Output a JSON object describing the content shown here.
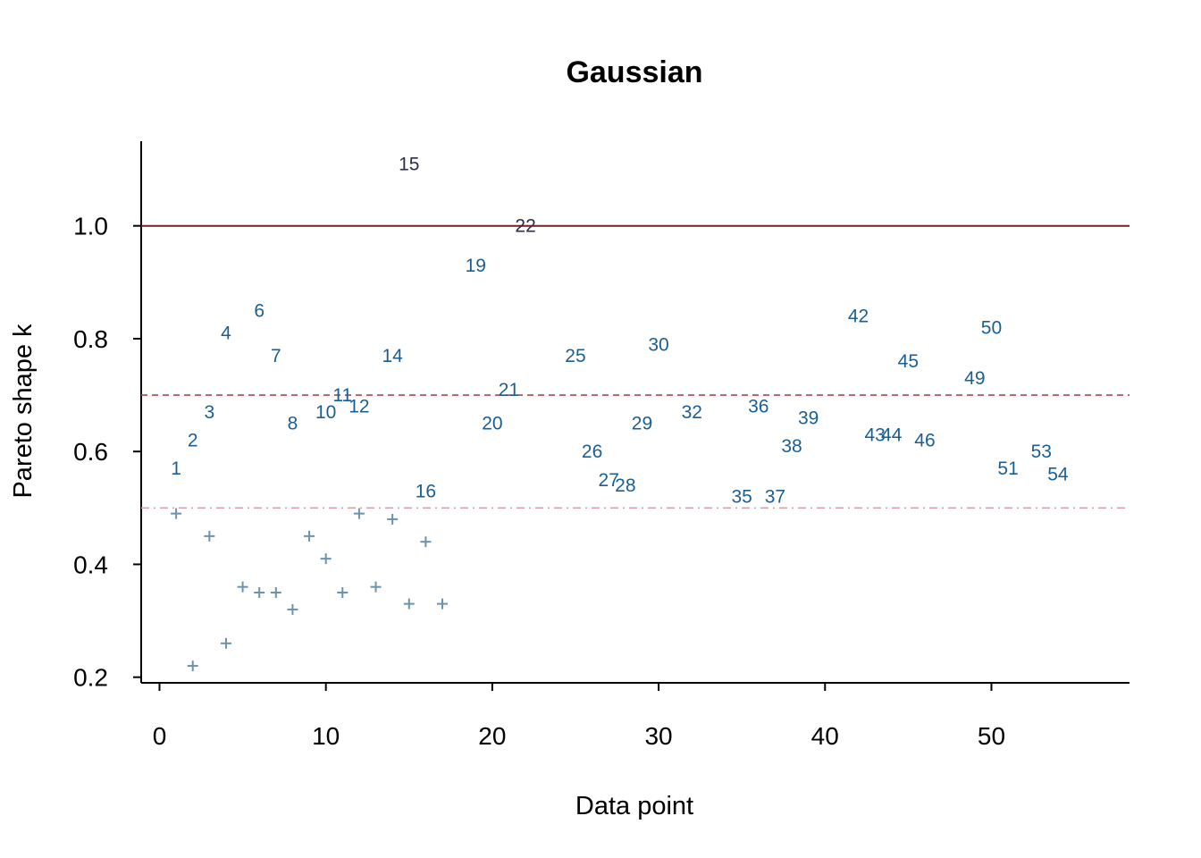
{
  "chart_data": {
    "type": "scatter",
    "title": "Gaussian",
    "xlabel": "Data point",
    "ylabel": "Pareto shape k",
    "xlim": [
      -1.1,
      58.3
    ],
    "ylim": [
      0.19,
      1.15
    ],
    "xticks": [
      0,
      10,
      20,
      30,
      40,
      50
    ],
    "yticks": [
      0.2,
      0.4,
      0.6,
      0.8,
      1.0
    ],
    "ytick_labels": [
      "0.2",
      "0.4",
      "0.6",
      "0.8",
      "1.0"
    ],
    "grid": false,
    "reference_lines": [
      {
        "y": 1.0,
        "style": "solid",
        "color": "#7a1f1f"
      },
      {
        "y": 0.7,
        "style": "dashed",
        "color": "#a34a58"
      },
      {
        "y": 0.5,
        "style": "dashdot",
        "color": "#d8a0aa"
      }
    ],
    "colors": {
      "plus": "#6b93ad",
      "label_high": "#1a5f94",
      "label_extreme": "#2e2e4a"
    },
    "plus_points": [
      {
        "x": 1,
        "y": 0.49
      },
      {
        "x": 2,
        "y": 0.22
      },
      {
        "x": 3,
        "y": 0.45
      },
      {
        "x": 4,
        "y": 0.26
      },
      {
        "x": 5,
        "y": 0.36
      },
      {
        "x": 6,
        "y": 0.35
      },
      {
        "x": 7,
        "y": 0.35
      },
      {
        "x": 8,
        "y": 0.32
      },
      {
        "x": 9,
        "y": 0.45
      },
      {
        "x": 10,
        "y": 0.41
      },
      {
        "x": 11,
        "y": 0.35
      },
      {
        "x": 12,
        "y": 0.49
      },
      {
        "x": 13,
        "y": 0.36
      },
      {
        "x": 14,
        "y": 0.48
      },
      {
        "x": 15,
        "y": 0.33
      },
      {
        "x": 16,
        "y": 0.44
      },
      {
        "x": 17,
        "y": 0.33
      }
    ],
    "labeled_points": [
      {
        "x": 1,
        "y": 0.57,
        "label": "1"
      },
      {
        "x": 2,
        "y": 0.62,
        "label": "2"
      },
      {
        "x": 3,
        "y": 0.67,
        "label": "3"
      },
      {
        "x": 4,
        "y": 0.81,
        "label": "4"
      },
      {
        "x": 6,
        "y": 0.85,
        "label": "6"
      },
      {
        "x": 7,
        "y": 0.77,
        "label": "7"
      },
      {
        "x": 8,
        "y": 0.65,
        "label": "8"
      },
      {
        "x": 10,
        "y": 0.67,
        "label": "10"
      },
      {
        "x": 11,
        "y": 0.7,
        "label": "11"
      },
      {
        "x": 12,
        "y": 0.68,
        "label": "12"
      },
      {
        "x": 14,
        "y": 0.77,
        "label": "14"
      },
      {
        "x": 15,
        "y": 1.11,
        "label": "15"
      },
      {
        "x": 16,
        "y": 0.53,
        "label": "16"
      },
      {
        "x": 19,
        "y": 0.93,
        "label": "19"
      },
      {
        "x": 20,
        "y": 0.65,
        "label": "20"
      },
      {
        "x": 21,
        "y": 0.71,
        "label": "21"
      },
      {
        "x": 22,
        "y": 1.0,
        "label": "22"
      },
      {
        "x": 25,
        "y": 0.77,
        "label": "25"
      },
      {
        "x": 26,
        "y": 0.6,
        "label": "26"
      },
      {
        "x": 27,
        "y": 0.55,
        "label": "27"
      },
      {
        "x": 28,
        "y": 0.54,
        "label": "28"
      },
      {
        "x": 29,
        "y": 0.65,
        "label": "29"
      },
      {
        "x": 30,
        "y": 0.79,
        "label": "30"
      },
      {
        "x": 32,
        "y": 0.67,
        "label": "32"
      },
      {
        "x": 35,
        "y": 0.52,
        "label": "35"
      },
      {
        "x": 36,
        "y": 0.68,
        "label": "36"
      },
      {
        "x": 37,
        "y": 0.52,
        "label": "37"
      },
      {
        "x": 38,
        "y": 0.61,
        "label": "38"
      },
      {
        "x": 39,
        "y": 0.66,
        "label": "39"
      },
      {
        "x": 42,
        "y": 0.84,
        "label": "42"
      },
      {
        "x": 43,
        "y": 0.63,
        "label": "43"
      },
      {
        "x": 44,
        "y": 0.63,
        "label": "44"
      },
      {
        "x": 45,
        "y": 0.76,
        "label": "45"
      },
      {
        "x": 46,
        "y": 0.62,
        "label": "46"
      },
      {
        "x": 49,
        "y": 0.73,
        "label": "49"
      },
      {
        "x": 50,
        "y": 0.82,
        "label": "50"
      },
      {
        "x": 51,
        "y": 0.57,
        "label": "51"
      },
      {
        "x": 53,
        "y": 0.6,
        "label": "53"
      },
      {
        "x": 54,
        "y": 0.56,
        "label": "54"
      }
    ]
  }
}
